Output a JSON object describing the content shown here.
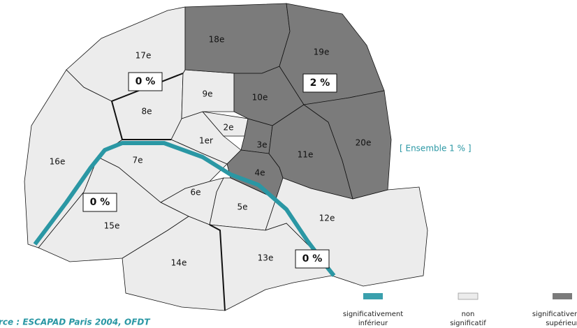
{
  "districts": [
    {
      "label": "1er",
      "color": "#ececec"
    },
    {
      "label": "2e",
      "color": "#ececec"
    },
    {
      "label": "3e",
      "color": "#7b7b7b"
    },
    {
      "label": "4e",
      "color": "#7b7b7b"
    },
    {
      "label": "5e",
      "color": "#ececec"
    },
    {
      "label": "6e",
      "color": "#ececec"
    },
    {
      "label": "7e",
      "color": "#ececec"
    },
    {
      "label": "8e",
      "color": "#ececec"
    },
    {
      "label": "9e",
      "color": "#ececec"
    },
    {
      "label": "10e",
      "color": "#7b7b7b"
    },
    {
      "label": "11e",
      "color": "#7b7b7b"
    },
    {
      "label": "12e",
      "color": "#ececec"
    },
    {
      "label": "13e",
      "color": "#ececec"
    },
    {
      "label": "14e",
      "color": "#ececec"
    },
    {
      "label": "15e",
      "color": "#ececec"
    },
    {
      "label": "16e",
      "color": "#ececec"
    },
    {
      "label": "17e",
      "color": "#ececec"
    },
    {
      "label": "18e",
      "color": "#7b7b7b"
    },
    {
      "label": "19e",
      "color": "#7b7b7b"
    },
    {
      "label": "20e",
      "color": "#7b7b7b"
    }
  ],
  "annotations": [
    "0 %",
    "2 %",
    "0 %",
    "0 %"
  ],
  "overall": "[ Ensemble 1 % ]",
  "river_color": "#2a97a4",
  "legend": [
    {
      "lines": [
        "significativement",
        "inférieur"
      ],
      "color": "#3aa0ad"
    },
    {
      "lines": [
        "non",
        "significatif"
      ],
      "color": "#ececec"
    },
    {
      "lines": [
        "significativement",
        "supérieur"
      ],
      "color": "#7b7b7b"
    }
  ],
  "source": "rce : ESCAPAD Paris 2004, OFDT"
}
